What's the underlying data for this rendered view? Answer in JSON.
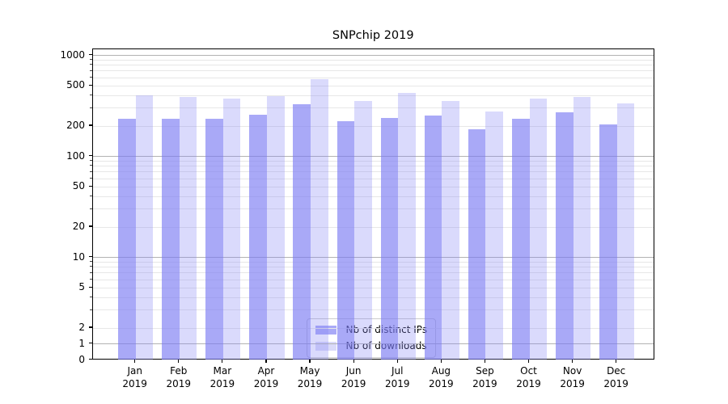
{
  "title": "SNPchip 2019",
  "chart_data": {
    "type": "bar",
    "title": "SNPchip 2019",
    "x_months": [
      "Jan",
      "Feb",
      "Mar",
      "Apr",
      "May",
      "Jun",
      "Jul",
      "Aug",
      "Sep",
      "Oct",
      "Nov",
      "Dec"
    ],
    "x_year": "2019",
    "x_categories": [
      "Jan 2019",
      "Feb 2019",
      "Mar 2019",
      "Apr 2019",
      "May 2019",
      "Jun 2019",
      "Jul 2019",
      "Aug 2019",
      "Sep 2019",
      "Oct 2019",
      "Nov 2019",
      "Dec 2019"
    ],
    "y_scale": "symlog",
    "y_ticks": [
      0,
      1,
      2,
      5,
      10,
      20,
      50,
      100,
      200,
      500,
      1000
    ],
    "ylim": [
      0,
      1150
    ],
    "grid": "horizontal; major lines at 1,10,100,1000; minor lines at 2-9 per decade",
    "legend_position": "lower center inside plot",
    "series": [
      {
        "name": "Nb of distinct IPs",
        "color": "#a9a9f7",
        "fill_rgba": "rgba(123,123,243,0.65)",
        "values": [
          236,
          236,
          236,
          260,
          331,
          225,
          240,
          256,
          185,
          237,
          272,
          206
        ]
      },
      {
        "name": "Nb of downloads",
        "color": "#dadaf9",
        "fill_rgba": "rgba(132,132,244,0.30)",
        "values": [
          405,
          386,
          372,
          394,
          585,
          352,
          426,
          356,
          277,
          374,
          386,
          337
        ]
      }
    ]
  }
}
